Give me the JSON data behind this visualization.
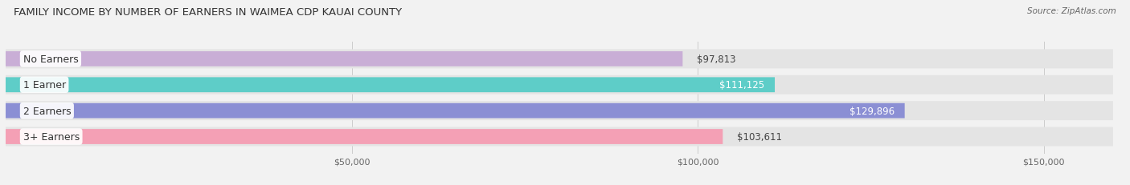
{
  "title": "FAMILY INCOME BY NUMBER OF EARNERS IN WAIMEA CDP KAUAI COUNTY",
  "source": "Source: ZipAtlas.com",
  "categories": [
    "No Earners",
    "1 Earner",
    "2 Earners",
    "3+ Earners"
  ],
  "values": [
    97813,
    111125,
    129896,
    103611
  ],
  "bar_colors": [
    "#c9aed6",
    "#5ecdc8",
    "#8b8fd4",
    "#f4a0b5"
  ],
  "label_formats": [
    "$97,813",
    "$111,125",
    "$129,896",
    "$103,611"
  ],
  "label_inside": [
    false,
    true,
    true,
    false
  ],
  "bg_color": "#f2f2f2",
  "row_bg_color": "#e4e4e4",
  "xlim": [
    0,
    160000
  ],
  "xticks": [
    50000,
    100000,
    150000
  ],
  "xtick_labels": [
    "$50,000",
    "$100,000",
    "$150,000"
  ],
  "bar_height": 0.58,
  "label_fontsize": 8.5,
  "cat_fontsize": 9,
  "title_fontsize": 9.5,
  "source_fontsize": 7.5
}
